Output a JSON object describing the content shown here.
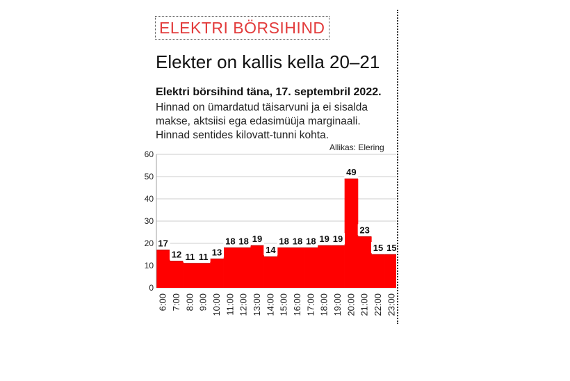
{
  "kicker": "ELEKTRI BÖRSIHIND",
  "headline": "Elekter on kallis kella 20–21",
  "subtitle": "Elektri börsihind täna, 17. septembril 2022.",
  "description": [
    "Hinnad on ümardatud täisarvuni ja ei sisalda",
    "makse, aktsiisi ega edasimüüja marginaali.",
    "Hinnad sentides kilovatt-tunni kohta."
  ],
  "source": "Allikas: Elering",
  "chart_data": {
    "type": "bar",
    "title": "Elektri börsihind täna, 17. septembril 2022.",
    "xlabel": "",
    "ylabel": "",
    "categories": [
      "6:00",
      "7:00",
      "8:00",
      "9:00",
      "10:00",
      "11:00",
      "12:00",
      "13:00",
      "14:00",
      "15:00",
      "16:00",
      "17:00",
      "18:00",
      "19:00",
      "20:00",
      "21:00",
      "22:00",
      "23:00"
    ],
    "values": [
      17,
      12,
      11,
      11,
      13,
      18,
      18,
      19,
      14,
      18,
      18,
      18,
      19,
      19,
      49,
      23,
      15,
      15
    ],
    "data_labels": [
      "17",
      "12",
      "11",
      "11",
      "13",
      "18",
      "18",
      "19",
      "14",
      "18",
      "18",
      "18",
      "19",
      "19",
      "49",
      "23",
      "15",
      "15"
    ],
    "ylim": [
      0,
      60
    ],
    "yticks": [
      0,
      10,
      20,
      30,
      40,
      50,
      60
    ],
    "grid": true,
    "bar_color": "#ff0000",
    "grid_color": "#bbbbbb"
  }
}
